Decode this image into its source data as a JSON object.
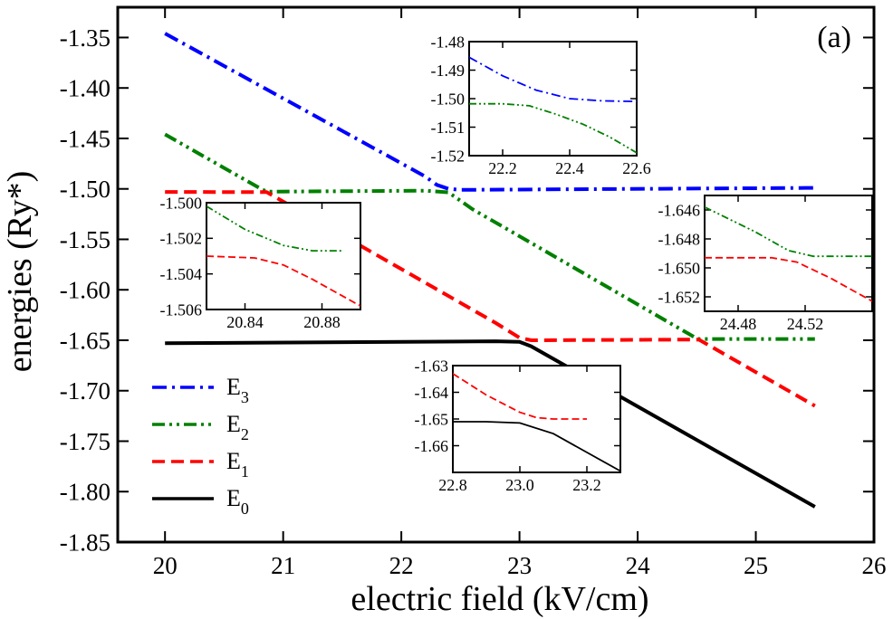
{
  "chart_data": {
    "type": "line",
    "panel_label": "(a)",
    "xlabel": "electric field (kV/cm)",
    "ylabel": "energies (Ry*)",
    "xlim": [
      19.6,
      26.0
    ],
    "ylim": [
      -1.85,
      -1.32
    ],
    "xticks": [
      20,
      21,
      22,
      23,
      24,
      25,
      26
    ],
    "xtick_labels": [
      "20",
      "21",
      "22",
      "23",
      "24",
      "25",
      "26"
    ],
    "yticks": [
      -1.35,
      -1.4,
      -1.45,
      -1.5,
      -1.55,
      -1.6,
      -1.65,
      -1.7,
      -1.75,
      -1.8,
      -1.85
    ],
    "ytick_labels": [
      "-1.35",
      "-1.40",
      "-1.45",
      "-1.50",
      "-1.55",
      "-1.60",
      "-1.65",
      "-1.70",
      "-1.75",
      "-1.80",
      "-1.85"
    ],
    "legend_position": "bottom-left",
    "series": [
      {
        "name": "E3",
        "label_main": "E",
        "label_sub": "3",
        "color": "#0000ff",
        "dash": "dashdot",
        "x": [
          20.0,
          22.2,
          22.3,
          22.4,
          22.5,
          25.5
        ],
        "y": [
          -1.346,
          -1.4875,
          -1.496,
          -1.5,
          -1.501,
          -1.499
        ]
      },
      {
        "name": "E2",
        "label_main": "E",
        "label_sub": "2",
        "color": "#008000",
        "dash": "dashdotdot",
        "x": [
          20.0,
          20.82,
          20.86,
          20.88,
          22.2,
          22.4,
          22.6,
          24.46,
          24.5,
          24.52,
          25.5
        ],
        "y": [
          -1.446,
          -1.5005,
          -1.5025,
          -1.5028,
          -1.5018,
          -1.5035,
          -1.52,
          -1.6455,
          -1.6483,
          -1.6488,
          -1.6488
        ]
      },
      {
        "name": "E1",
        "label_main": "E",
        "label_sub": "1",
        "color": "#ff0000",
        "dash": "dashed",
        "x": [
          20.0,
          20.86,
          20.89,
          22.8,
          23.0,
          23.1,
          24.5,
          24.52,
          25.5
        ],
        "y": [
          -1.503,
          -1.5032,
          -1.5052,
          -1.633,
          -1.6475,
          -1.65,
          -1.6493,
          -1.6495,
          -1.715
        ]
      },
      {
        "name": "E0",
        "label_main": "E",
        "label_sub": "0",
        "color": "#000000",
        "dash": "solid",
        "x": [
          20.0,
          22.8,
          23.0,
          23.1,
          25.5
        ],
        "y": [
          -1.653,
          -1.651,
          -1.6515,
          -1.656,
          -1.815
        ]
      }
    ],
    "insets": [
      {
        "name": "inset-e3-e2",
        "xlim": [
          22.1,
          22.6
        ],
        "ylim": [
          -1.52,
          -1.48
        ],
        "xticks": [
          22.2,
          22.4,
          22.6
        ],
        "xtick_labels": [
          "22.2",
          "22.4",
          "22.6"
        ],
        "yticks": [
          -1.48,
          -1.49,
          -1.5,
          -1.51,
          -1.52
        ],
        "ytick_labels": [
          "-1.48",
          "-1.49",
          "-1.50",
          "-1.51",
          "-1.52"
        ],
        "series": [
          {
            "name": "E3",
            "x": [
              22.1,
              22.2,
              22.3,
              22.4,
              22.5,
              22.6
            ],
            "y": [
              -1.4855,
              -1.492,
              -1.497,
              -1.5,
              -1.5008,
              -1.501
            ]
          },
          {
            "name": "E2",
            "x": [
              22.1,
              22.2,
              22.28,
              22.36,
              22.44,
              22.52,
              22.6
            ],
            "y": [
              -1.5018,
              -1.5018,
              -1.5025,
              -1.5055,
              -1.509,
              -1.5135,
              -1.519
            ]
          }
        ]
      },
      {
        "name": "inset-e2-e1",
        "xlim": [
          20.82,
          20.9
        ],
        "ylim": [
          -1.506,
          -1.5
        ],
        "xticks": [
          20.84,
          20.88
        ],
        "xtick_labels": [
          "20.84",
          "20.88"
        ],
        "yticks": [
          -1.5,
          -1.502,
          -1.504,
          -1.506
        ],
        "ytick_labels": [
          "-1.500",
          "-1.502",
          "-1.504",
          "-1.506"
        ],
        "series": [
          {
            "name": "E2",
            "x": [
              20.82,
              20.84,
              20.86,
              20.875,
              20.89
            ],
            "y": [
              -1.5002,
              -1.5015,
              -1.5024,
              -1.5027,
              -1.5027
            ]
          },
          {
            "name": "E1",
            "x": [
              20.82,
              20.845,
              20.86,
              20.875,
              20.9
            ],
            "y": [
              -1.503,
              -1.5031,
              -1.5035,
              -1.5043,
              -1.5058
            ]
          }
        ]
      },
      {
        "name": "inset-e2-e1-b",
        "xlim": [
          24.46,
          24.56
        ],
        "ylim": [
          -1.653,
          -1.645
        ],
        "xticks": [
          24.48,
          24.52
        ],
        "xtick_labels": [
          "24.48",
          "24.52"
        ],
        "yticks": [
          -1.646,
          -1.648,
          -1.65,
          -1.652
        ],
        "ytick_labels": [
          "-1.646",
          "-1.648",
          "-1.650",
          "-1.652"
        ],
        "series": [
          {
            "name": "E2",
            "x": [
              24.46,
              24.49,
              24.51,
              24.525,
              24.56
            ],
            "y": [
              -1.6458,
              -1.6475,
              -1.6488,
              -1.6492,
              -1.6492
            ]
          },
          {
            "name": "E1",
            "x": [
              24.46,
              24.5,
              24.515,
              24.535,
              24.56
            ],
            "y": [
              -1.6493,
              -1.6493,
              -1.6496,
              -1.6507,
              -1.6523
            ]
          }
        ]
      },
      {
        "name": "inset-e1-e0",
        "xlim": [
          22.8,
          23.3
        ],
        "ylim": [
          -1.67,
          -1.63
        ],
        "xticks": [
          22.8,
          23.0,
          23.2
        ],
        "xtick_labels": [
          "22.8",
          "23.0",
          "23.2"
        ],
        "yticks": [
          -1.63,
          -1.64,
          -1.65,
          -1.66
        ],
        "ytick_labels": [
          "-1.63",
          "-1.64",
          "-1.65",
          "-1.66"
        ],
        "series": [
          {
            "name": "E1",
            "x": [
              22.8,
              22.9,
              23.0,
              23.05,
              23.1,
              23.2
            ],
            "y": [
              -1.633,
              -1.641,
              -1.6475,
              -1.6495,
              -1.65,
              -1.65
            ]
          },
          {
            "name": "E0",
            "x": [
              22.8,
              22.9,
              23.0,
              23.1,
              23.2,
              23.3
            ],
            "y": [
              -1.651,
              -1.651,
              -1.6515,
              -1.6555,
              -1.6625,
              -1.6695
            ]
          }
        ]
      }
    ]
  }
}
